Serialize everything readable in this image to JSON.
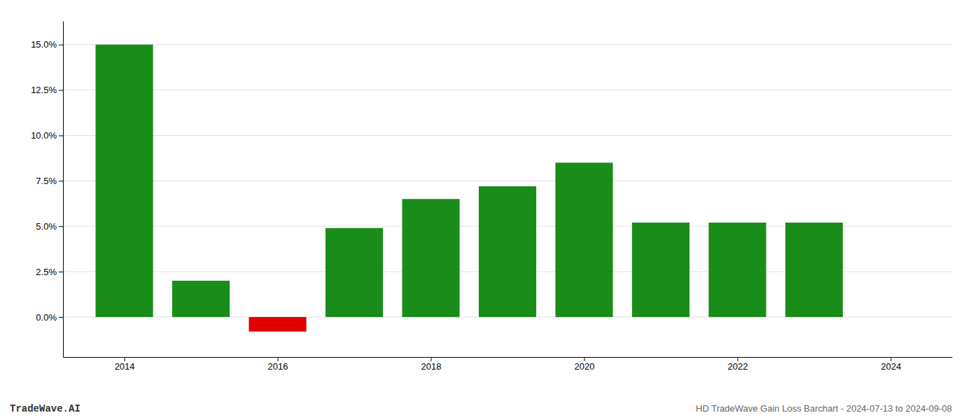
{
  "chart_data": {
    "type": "bar",
    "title": "HD TradeWave Gain Loss Barchart - 2024-07-13 to 2024-09-08",
    "annotations": [
      "TradeWave.AI"
    ],
    "x": [
      2014,
      2015,
      2016,
      2017,
      2018,
      2019,
      2020,
      2021,
      2022,
      2023
    ],
    "values": [
      0.15,
      0.02,
      -0.008,
      0.049,
      0.065,
      0.072,
      0.085,
      0.052,
      0.052,
      0.052
    ],
    "colors": [
      "#1a8c1a",
      "#1a8c1a",
      "#e00000",
      "#1a8c1a",
      "#1a8c1a",
      "#1a8c1a",
      "#1a8c1a",
      "#1a8c1a",
      "#1a8c1a",
      "#1a8c1a"
    ],
    "xlim": [
      2013.2,
      2024.8
    ],
    "xticks": [
      2014,
      2016,
      2018,
      2020,
      2022,
      2024
    ],
    "ylim": [
      -0.022,
      0.163
    ],
    "yticks": [
      {
        "value": 0.0,
        "label": "0.0%"
      },
      {
        "value": 0.025,
        "label": "2.5%"
      },
      {
        "value": 0.05,
        "label": "5.0%"
      },
      {
        "value": 0.075,
        "label": "7.5%"
      },
      {
        "value": 0.1,
        "label": "10.0%"
      },
      {
        "value": 0.125,
        "label": "12.5%"
      },
      {
        "value": 0.15,
        "label": "15.0%"
      }
    ],
    "grid": true
  }
}
